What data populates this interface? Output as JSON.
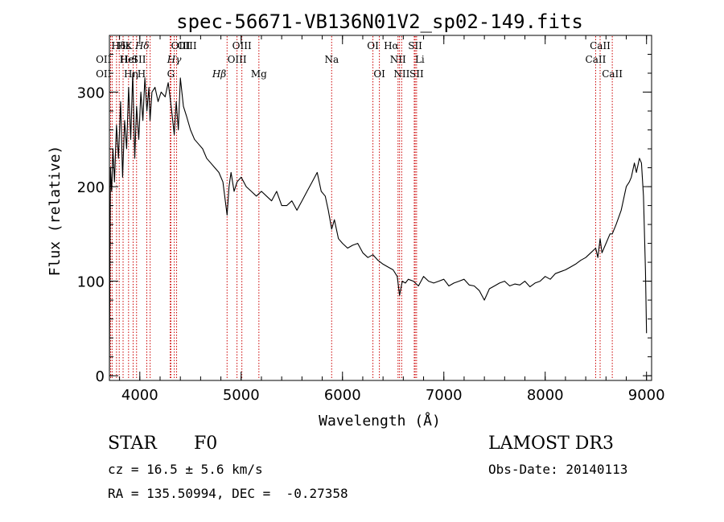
{
  "chart_data": {
    "type": "line",
    "title": "spec-56671-VB136N01V2_sp02-149.fits",
    "xlabel": "Wavelength (Å)",
    "ylabel": "Flux (relative)",
    "xlim": [
      3700,
      9050
    ],
    "ylim": [
      -5,
      360
    ],
    "xticks": [
      4000,
      5000,
      6000,
      7000,
      8000,
      9000
    ],
    "yticks": [
      0,
      100,
      200,
      300
    ],
    "minor_x_step": 200,
    "minor_y_step": 20,
    "series": [
      {
        "name": "flux",
        "color": "#000000",
        "x": [
          3700,
          3710,
          3722,
          3735,
          3750,
          3770,
          3790,
          3810,
          3830,
          3850,
          3870,
          3890,
          3910,
          3930,
          3950,
          3968,
          3990,
          4010,
          4030,
          4050,
          4070,
          4090,
          4101,
          4120,
          4150,
          4180,
          4210,
          4250,
          4280,
          4310,
          4340,
          4360,
          4380,
          4400,
          4430,
          4460,
          4500,
          4540,
          4580,
          4620,
          4660,
          4700,
          4740,
          4780,
          4820,
          4861,
          4880,
          4900,
          4930,
          4960,
          5000,
          5050,
          5100,
          5150,
          5200,
          5250,
          5300,
          5350,
          5400,
          5450,
          5500,
          5550,
          5600,
          5650,
          5700,
          5750,
          5790,
          5830,
          5860,
          5893,
          5920,
          5960,
          6000,
          6050,
          6100,
          6150,
          6200,
          6250,
          6300,
          6350,
          6400,
          6450,
          6500,
          6540,
          6563,
          6590,
          6620,
          6650,
          6700,
          6750,
          6800,
          6850,
          6900,
          6950,
          7000,
          7050,
          7100,
          7150,
          7200,
          7250,
          7300,
          7350,
          7400,
          7450,
          7500,
          7550,
          7600,
          7650,
          7700,
          7750,
          7800,
          7850,
          7900,
          7950,
          8000,
          8050,
          8100,
          8150,
          8200,
          8250,
          8300,
          8350,
          8400,
          8450,
          8498,
          8520,
          8542,
          8560,
          8600,
          8640,
          8662,
          8700,
          8750,
          8780,
          8800,
          8830,
          8850,
          8880,
          8900,
          8930,
          8950,
          8970,
          8990,
          9000
        ],
        "y": [
          5,
          220,
          195,
          240,
          205,
          265,
          230,
          290,
          210,
          270,
          240,
          305,
          250,
          320,
          230,
          285,
          250,
          300,
          270,
          315,
          280,
          305,
          270,
          300,
          305,
          290,
          300,
          295,
          310,
          285,
          255,
          290,
          260,
          315,
          285,
          275,
          260,
          250,
          245,
          240,
          230,
          225,
          220,
          215,
          205,
          170,
          200,
          215,
          195,
          205,
          210,
          200,
          195,
          190,
          195,
          190,
          185,
          195,
          180,
          180,
          185,
          175,
          185,
          195,
          205,
          215,
          195,
          190,
          175,
          155,
          165,
          145,
          140,
          135,
          138,
          140,
          130,
          125,
          128,
          122,
          118,
          115,
          112,
          105,
          85,
          100,
          98,
          102,
          100,
          95,
          105,
          100,
          98,
          100,
          102,
          95,
          98,
          100,
          102,
          96,
          95,
          90,
          80,
          92,
          95,
          98,
          100,
          95,
          97,
          96,
          100,
          94,
          98,
          100,
          105,
          102,
          108,
          110,
          112,
          115,
          118,
          122,
          125,
          130,
          135,
          125,
          145,
          130,
          140,
          150,
          150,
          160,
          175,
          190,
          200,
          205,
          210,
          225,
          215,
          230,
          225,
          190,
          110,
          45
        ]
      }
    ],
    "lines": [
      {
        "label": "Hδ",
        "x": 3712,
        "row": 1,
        "style": "sans",
        "align": "left"
      },
      {
        "label": "OII",
        "x": 3727,
        "row": 2,
        "style": "sans",
        "align": "right"
      },
      {
        "label": "OII",
        "x": 3727,
        "row": 3,
        "style": "sans",
        "align": "right"
      },
      {
        "label": "Hε",
        "x": 3770,
        "row": 1,
        "style": "sans",
        "align": "left"
      },
      {
        "label": "Hε",
        "x": 3797,
        "row": 2,
        "style": "sans",
        "align": "left"
      },
      {
        "label": "Hη",
        "x": 3835,
        "row": 3,
        "style": "sans",
        "align": "left"
      },
      {
        "label": "HeI",
        "x": 3889,
        "row": 2,
        "style": "sans",
        "align": "center"
      },
      {
        "label": "K",
        "x": 3934,
        "row": 1,
        "style": "sans",
        "align": "right"
      },
      {
        "label": "H",
        "x": 3968,
        "row": 3,
        "style": "sans",
        "align": "left"
      },
      {
        "label": "SII",
        "x": 4069,
        "row": 2,
        "style": "sans",
        "align": "right"
      },
      {
        "label": "Hδ",
        "x": 4102,
        "row": 1,
        "style": "italic",
        "align": "right"
      },
      {
        "label": "OIII",
        "x": 4300,
        "row": 1,
        "style": "sans",
        "align": "left"
      },
      {
        "label": "Hγ",
        "x": 4340,
        "row": 2,
        "style": "italic",
        "align": "center"
      },
      {
        "label": "G",
        "x": 4307,
        "row": 3,
        "style": "sans",
        "align": "center"
      },
      {
        "label": "OIII",
        "x": 4363,
        "row": 1,
        "style": "sans",
        "align": "left"
      },
      {
        "label": "Hβ",
        "x": 4861,
        "row": 3,
        "style": "italic",
        "align": "right"
      },
      {
        "label": "OIII",
        "x": 4959,
        "row": 2,
        "style": "sans",
        "align": "center"
      },
      {
        "label": "OIII",
        "x": 5007,
        "row": 1,
        "style": "sans",
        "align": "center"
      },
      {
        "label": "Mg",
        "x": 5175,
        "row": 3,
        "style": "sans",
        "align": "center"
      },
      {
        "label": "Na",
        "x": 5893,
        "row": 2,
        "style": "sans",
        "align": "center"
      },
      {
        "label": "OI",
        "x": 6300,
        "row": 1,
        "style": "sans",
        "align": "center"
      },
      {
        "label": "OI",
        "x": 6364,
        "row": 3,
        "style": "sans",
        "align": "center"
      },
      {
        "label": "Hα",
        "x": 6563,
        "row": 1,
        "style": "sans",
        "align": "right"
      },
      {
        "label": "NII",
        "x": 6548,
        "row": 2,
        "style": "sans",
        "align": "center"
      },
      {
        "label": "NII",
        "x": 6584,
        "row": 3,
        "style": "sans",
        "align": "center"
      },
      {
        "label": "SII",
        "x": 6717,
        "row": 1,
        "style": "sans",
        "align": "center"
      },
      {
        "label": "Li",
        "x": 6708,
        "row": 2,
        "style": "sans",
        "align": "left"
      },
      {
        "label": "SII",
        "x": 6731,
        "row": 3,
        "style": "sans",
        "align": "center"
      },
      {
        "label": "CaII",
        "x": 8498,
        "row": 2,
        "style": "sans",
        "align": "center"
      },
      {
        "label": "CaII",
        "x": 8542,
        "row": 1,
        "style": "sans",
        "align": "center"
      },
      {
        "label": "CaII",
        "x": 8662,
        "row": 3,
        "style": "sans",
        "align": "center"
      }
    ],
    "line_color": "#cc0000"
  },
  "info": {
    "object": "STAR",
    "subclass": "F0",
    "survey": "LAMOST DR3",
    "cz": "cz = 16.5 ± 5.6 km/s",
    "obs_date": "Obs-Date: 20140113",
    "coords": "RA = 135.50994, DEC =  -0.27358"
  }
}
